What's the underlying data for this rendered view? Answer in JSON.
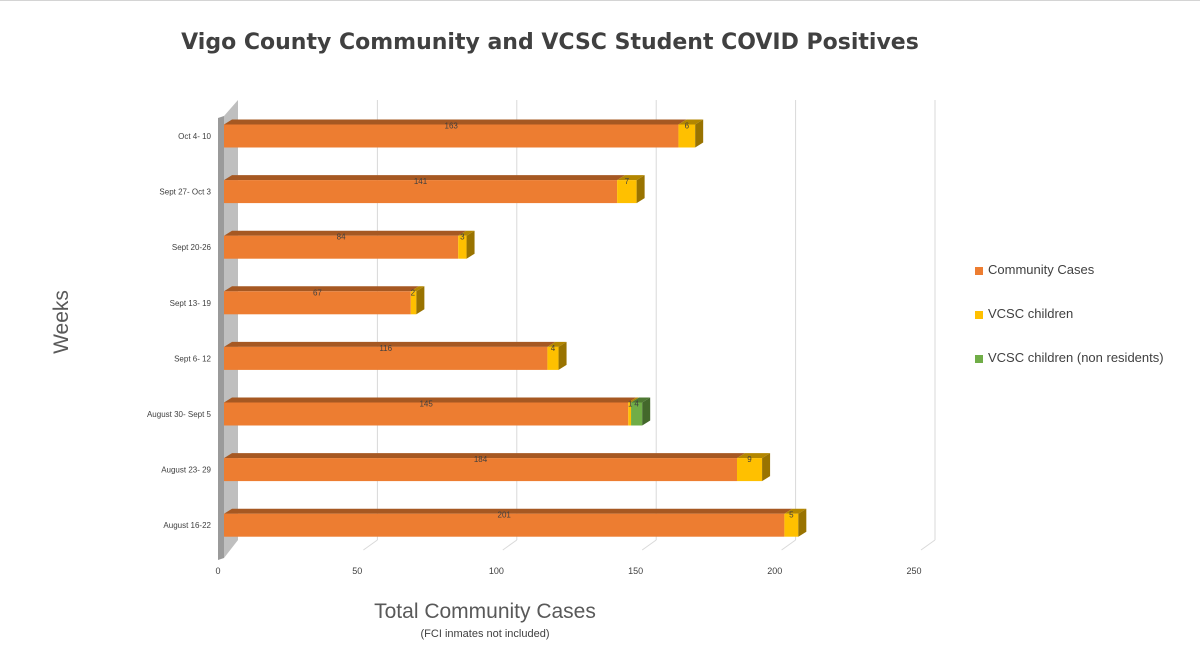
{
  "chart_data": {
    "type": "bar",
    "orientation": "horizontal",
    "stacked": true,
    "title": "Vigo County Community and VCSC Student COVID Positives",
    "xlabel": "Total Community Cases",
    "x_note": "(FCI inmates not included)",
    "ylabel": "Weeks",
    "xlim": [
      0,
      250
    ],
    "xticks": [
      "0",
      "50",
      "100",
      "150",
      "200",
      "250"
    ],
    "grid": true,
    "legend_position": "right",
    "categories": [
      "Oct 4- 10",
      "Sept 27- Oct 3",
      "Sept 20-26",
      "Sept 13- 19",
      "Sept 6- 12",
      "August 30- Sept 5",
      "August 23- 29",
      "August 16-22"
    ],
    "series": [
      {
        "name": "Community Cases",
        "color": "#ED7D31",
        "values": [
          163,
          141,
          84,
          67,
          116,
          145,
          184,
          201
        ],
        "labels": [
          "163",
          "141",
          "84",
          "67",
          "116",
          "145",
          "184",
          "201"
        ]
      },
      {
        "name": "VCSC children",
        "color": "#FFC000",
        "values": [
          6,
          7,
          3,
          2,
          4,
          1,
          9,
          5
        ],
        "labels": [
          "6",
          "7",
          "3",
          "2",
          "4",
          "1",
          "9",
          "5"
        ]
      },
      {
        "name": "VCSC children (non residents)",
        "color": "#70AD47",
        "values": [
          0,
          0,
          0,
          0,
          0,
          4,
          0,
          0
        ],
        "labels": [
          "",
          "",
          "",
          "",
          "",
          "4",
          "",
          ""
        ]
      }
    ]
  }
}
